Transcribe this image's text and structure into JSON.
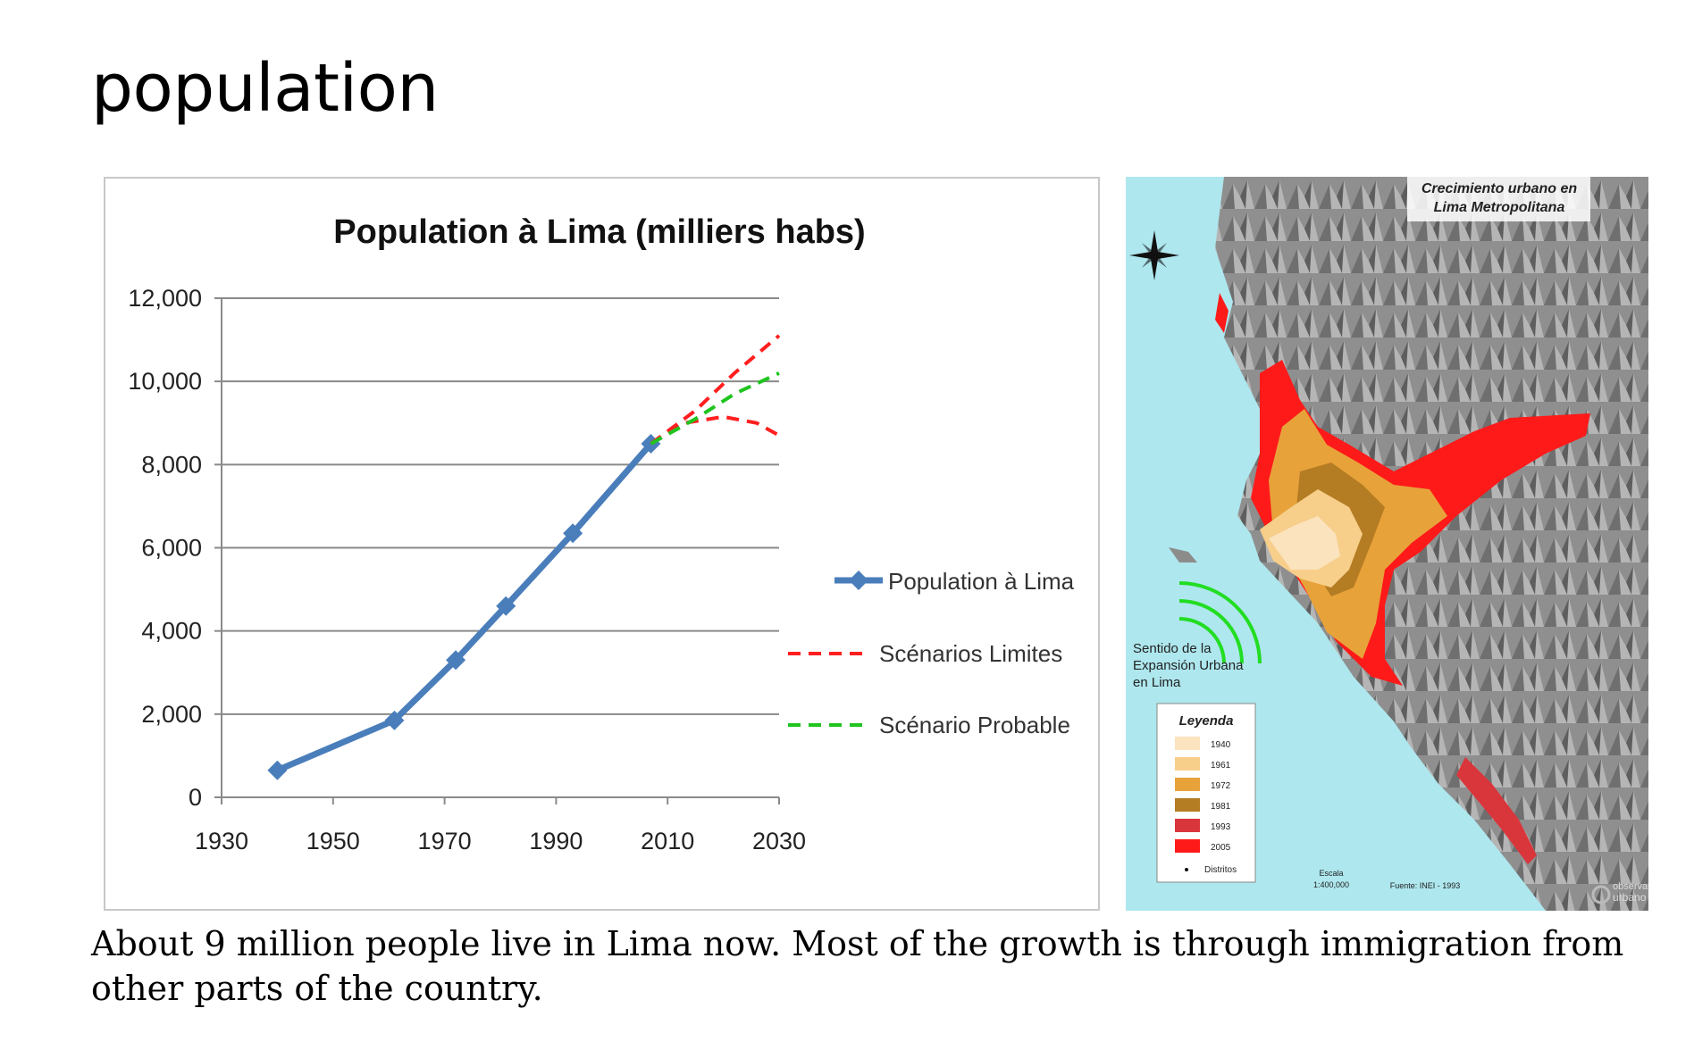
{
  "page": {
    "title": "population",
    "caption": "About 9 million people live in Lima now. Most of the growth is through immigration from other parts of the country."
  },
  "chart_data": {
    "type": "line",
    "title": "Population à Lima (milliers habs)",
    "xlabel": "",
    "ylabel": "",
    "xlim": [
      1930,
      2030
    ],
    "ylim": [
      0,
      12000
    ],
    "x_ticks": [
      1930,
      1950,
      1970,
      1990,
      2010,
      2030
    ],
    "y_ticks": [
      0,
      2000,
      4000,
      6000,
      8000,
      10000,
      12000
    ],
    "y_tick_labels": [
      "0",
      "2,000",
      "4,000",
      "6,000",
      "8,000",
      "10,000",
      "12,000"
    ],
    "grid": "horizontal",
    "legend_position": "right",
    "series": [
      {
        "name": "Population à Lima",
        "style": "solid-diamond",
        "color": "#4a7ebb",
        "points": [
          [
            1940,
            650
          ],
          [
            1961,
            1850
          ],
          [
            1972,
            3300
          ],
          [
            1981,
            4600
          ],
          [
            1993,
            6350
          ],
          [
            2007,
            8500
          ]
        ]
      },
      {
        "name": "Scénarios Limites",
        "style": "dashed",
        "color": "#ff1f1f",
        "lines": [
          [
            [
              2007,
              8500
            ],
            [
              2015,
              9300
            ],
            [
              2022,
              10200
            ],
            [
              2030,
              11100
            ]
          ],
          [
            [
              2007,
              8500
            ],
            [
              2013,
              9000
            ],
            [
              2020,
              9150
            ],
            [
              2026,
              9000
            ],
            [
              2030,
              8700
            ]
          ]
        ]
      },
      {
        "name": "Scénario Probable",
        "style": "dashed",
        "color": "#1fc41f",
        "lines": [
          [
            [
              2007,
              8500
            ],
            [
              2015,
              9100
            ],
            [
              2022,
              9700
            ],
            [
              2030,
              10200
            ]
          ]
        ]
      }
    ]
  },
  "map": {
    "title_line1": "Crecimiento urbano en",
    "title_line2": "Lima Metropolitana",
    "direction_line1": "Sentido de la",
    "direction_line2": "Expansión Urbana",
    "direction_line3": "en Lima",
    "legend_title": "Leyenda",
    "legend_items": [
      {
        "label": "1940",
        "color": "#fbe3bd"
      },
      {
        "label": "1961",
        "color": "#f7ce8a"
      },
      {
        "label": "1972",
        "color": "#e8a23a"
      },
      {
        "label": "1981",
        "color": "#b47c23"
      },
      {
        "label": "1993",
        "color": "#d9363c"
      },
      {
        "label": "2005",
        "color": "#ff1a1a"
      }
    ],
    "legend_dot_label": "Distritos",
    "scale_line1": "Escala",
    "scale_line2": "1:400,000",
    "source": "Fuente: INEI - 1993",
    "logo_line1": "observatorio",
    "logo_line2": "urbano",
    "sea_color": "#aee7ee",
    "land_color": "#8c8c8c"
  }
}
